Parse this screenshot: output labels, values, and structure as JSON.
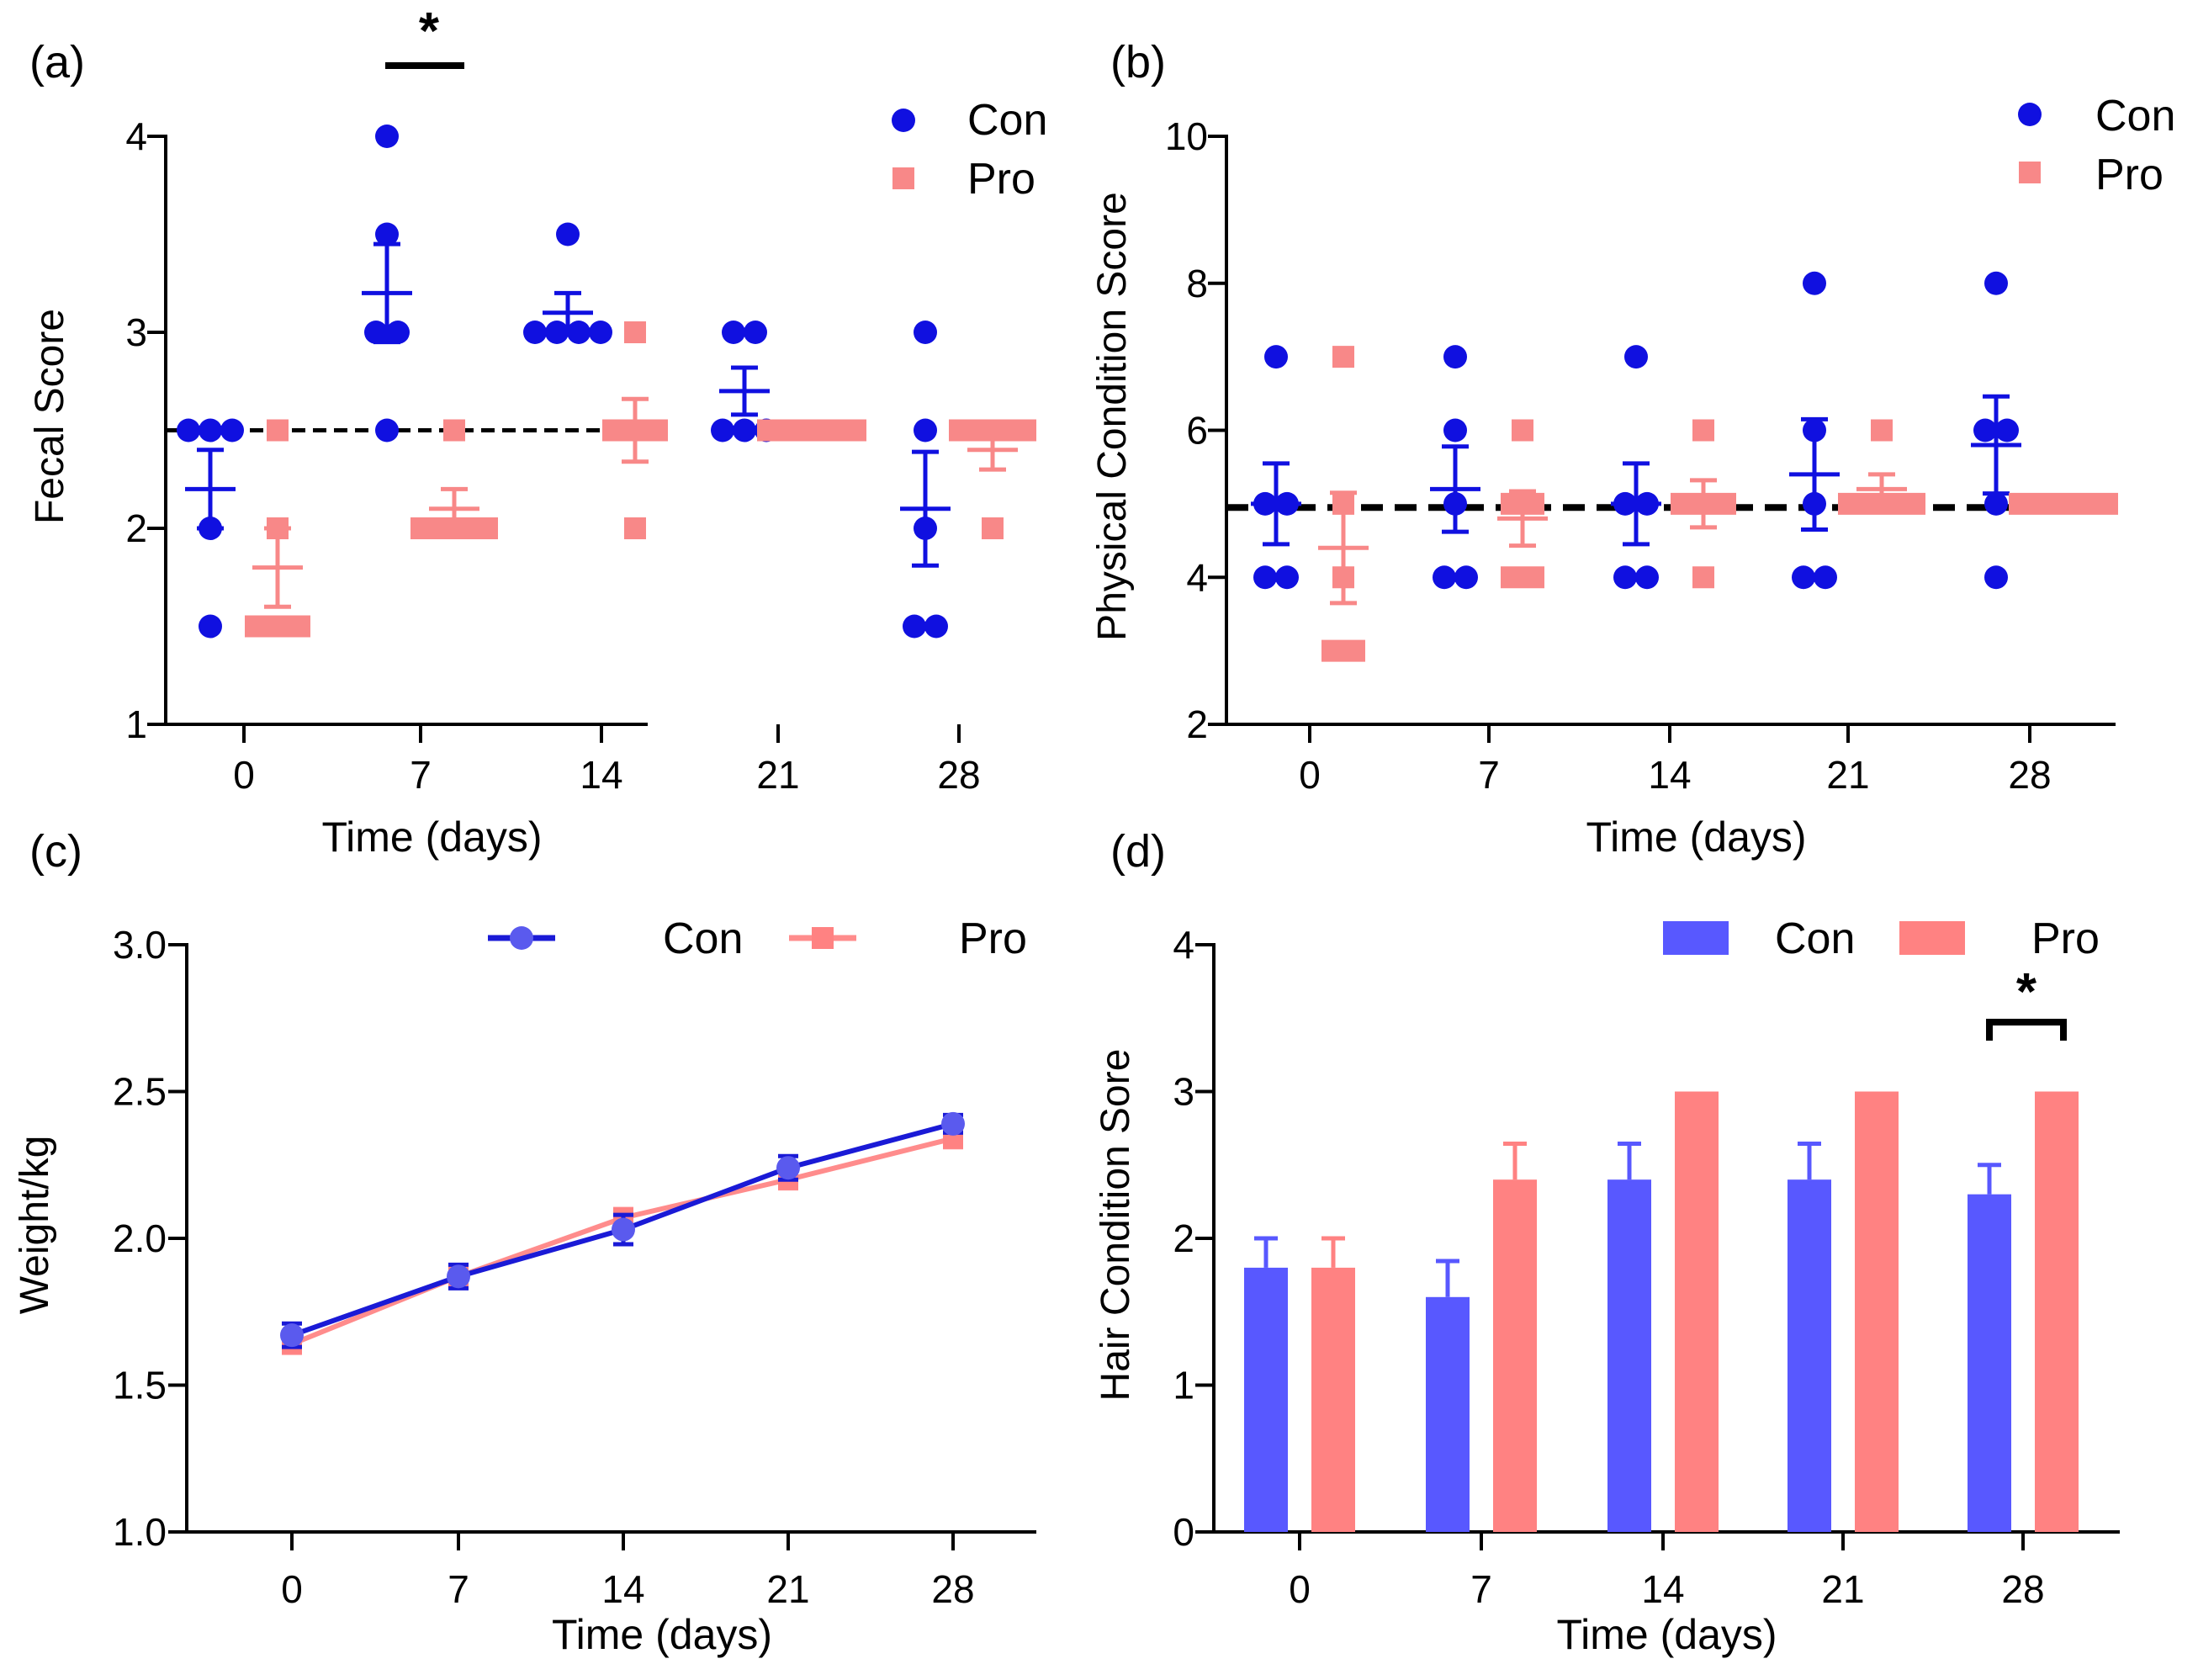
{
  "colors": {
    "con_dot": "#1010e0",
    "pro_dot": "#f88888",
    "con_bar": "#5858ff",
    "pro_bar": "#ff8282",
    "con_line": "#1a1ad6",
    "pro_line": "#ff8c8c",
    "axis": "#000000"
  },
  "chart_data": [
    {
      "panel_label": "(a)",
      "type": "scatter",
      "ylabel": "Fecal Score",
      "xlabel": "Time (days)",
      "categories": [
        "0",
        "7",
        "14",
        "21",
        "28"
      ],
      "ylim": [
        1,
        4
      ],
      "yticks": [
        "1",
        "2",
        "3",
        "4"
      ],
      "legend": [
        {
          "name": "Con",
          "marker": "circle"
        },
        {
          "name": "Pro",
          "marker": "square"
        }
      ],
      "reference_line": 2.5,
      "series": [
        {
          "name": "Con",
          "points": [
            [
              2.5,
              2.5,
              2.0,
              1.5,
              2.5
            ],
            [
              4.0,
              3.5,
              3.0,
              3.0,
              2.5
            ],
            [
              3.5,
              3.0,
              3.0,
              3.0,
              3.0
            ],
            [
              3.0,
              3.0,
              2.5,
              2.5,
              2.5
            ],
            [
              3.0,
              2.5,
              2.0,
              1.5,
              1.5
            ]
          ],
          "mean": [
            2.2,
            3.2,
            3.1,
            2.7,
            2.1
          ],
          "sem": [
            0.2,
            0.25,
            0.1,
            0.12,
            0.29
          ]
        },
        {
          "name": "Pro",
          "points": [
            [
              2.5,
              2.0,
              1.5,
              1.5,
              1.5
            ],
            [
              2.5,
              2.0,
              2.0,
              2.0,
              2.0
            ],
            [
              3.0,
              2.5,
              2.5,
              2.5,
              2.0
            ],
            [
              2.5,
              2.5,
              2.5,
              2.5,
              2.5
            ],
            [
              2.5,
              2.5,
              2.5,
              2.5,
              2.0
            ]
          ],
          "mean": [
            1.8,
            2.1,
            2.5,
            2.5,
            2.4
          ],
          "sem": [
            0.2,
            0.1,
            0.16,
            0.0,
            0.1
          ]
        }
      ],
      "annotations": [
        {
          "text": "*",
          "category": "7",
          "type": "bar"
        }
      ]
    },
    {
      "panel_label": "(b)",
      "type": "scatter",
      "ylabel": "Physical Condition Score",
      "xlabel": "Time (days)",
      "categories": [
        "0",
        "7",
        "14",
        "21",
        "28"
      ],
      "ylim": [
        2,
        10
      ],
      "yticks": [
        "2",
        "4",
        "6",
        "8",
        "10"
      ],
      "legend": [
        {
          "name": "Con",
          "marker": "circle"
        },
        {
          "name": "Pro",
          "marker": "square"
        }
      ],
      "reference_line": 4.95,
      "series": [
        {
          "name": "Con",
          "points": [
            [
              7,
              5,
              5,
              4,
              4
            ],
            [
              7,
              6,
              5,
              4,
              4
            ],
            [
              7,
              5,
              5,
              4,
              4
            ],
            [
              8,
              6,
              5,
              4,
              4
            ],
            [
              8,
              6,
              6,
              5,
              4
            ]
          ],
          "mean": [
            5.0,
            5.2,
            5.0,
            5.4,
            5.8
          ],
          "sem": [
            0.55,
            0.58,
            0.55,
            0.75,
            0.66
          ]
        },
        {
          "name": "Pro",
          "points": [
            [
              7,
              5,
              4,
              3,
              3
            ],
            [
              6,
              5,
              5,
              4,
              4
            ],
            [
              6,
              5,
              5,
              5,
              4
            ],
            [
              6,
              5,
              5,
              5,
              5
            ],
            [
              5,
              5,
              5,
              5,
              5
            ]
          ],
          "mean": [
            4.4,
            4.8,
            5.0,
            5.2,
            5.0
          ],
          "sem": [
            0.75,
            0.37,
            0.32,
            0.2,
            0.0
          ]
        }
      ]
    },
    {
      "panel_label": "(c)",
      "type": "line",
      "ylabel": "Weight/kg",
      "xlabel": "Time (days)",
      "categories": [
        "0",
        "7",
        "14",
        "21",
        "28"
      ],
      "ylim": [
        1.0,
        3.0
      ],
      "yticks": [
        "1.0",
        "1.5",
        "2.0",
        "2.5",
        "3.0"
      ],
      "legend": [
        {
          "name": "Con",
          "marker": "circle"
        },
        {
          "name": "Pro",
          "marker": "square"
        }
      ],
      "series": [
        {
          "name": "Con",
          "values": [
            1.67,
            1.87,
            2.03,
            2.24,
            2.39
          ],
          "sem": [
            0.04,
            0.04,
            0.05,
            0.04,
            0.03
          ]
        },
        {
          "name": "Pro",
          "values": [
            1.64,
            1.87,
            2.07,
            2.2,
            2.34
          ],
          "sem": [
            0.03,
            0.03,
            0.03,
            0.03,
            0.03
          ]
        }
      ]
    },
    {
      "panel_label": "(d)",
      "type": "bar",
      "ylabel": "Hair Condition Sore",
      "xlabel": "Time (days)",
      "categories": [
        "0",
        "7",
        "14",
        "21",
        "28"
      ],
      "ylim": [
        0,
        4
      ],
      "yticks": [
        "0",
        "1",
        "2",
        "3",
        "4"
      ],
      "legend": [
        {
          "name": "Con",
          "marker": "rect"
        },
        {
          "name": "Pro",
          "marker": "rect"
        }
      ],
      "series": [
        {
          "name": "Con",
          "values": [
            1.8,
            1.6,
            2.4,
            2.4,
            2.3
          ],
          "sem": [
            0.2,
            0.245,
            0.245,
            0.245,
            0.2
          ]
        },
        {
          "name": "Pro",
          "values": [
            1.8,
            2.4,
            3.0,
            3.0,
            3.0
          ],
          "sem": [
            0.2,
            0.245,
            0.0,
            0.0,
            0.0
          ]
        }
      ],
      "annotations": [
        {
          "text": "*",
          "category": "28",
          "type": "bracket"
        }
      ]
    }
  ]
}
